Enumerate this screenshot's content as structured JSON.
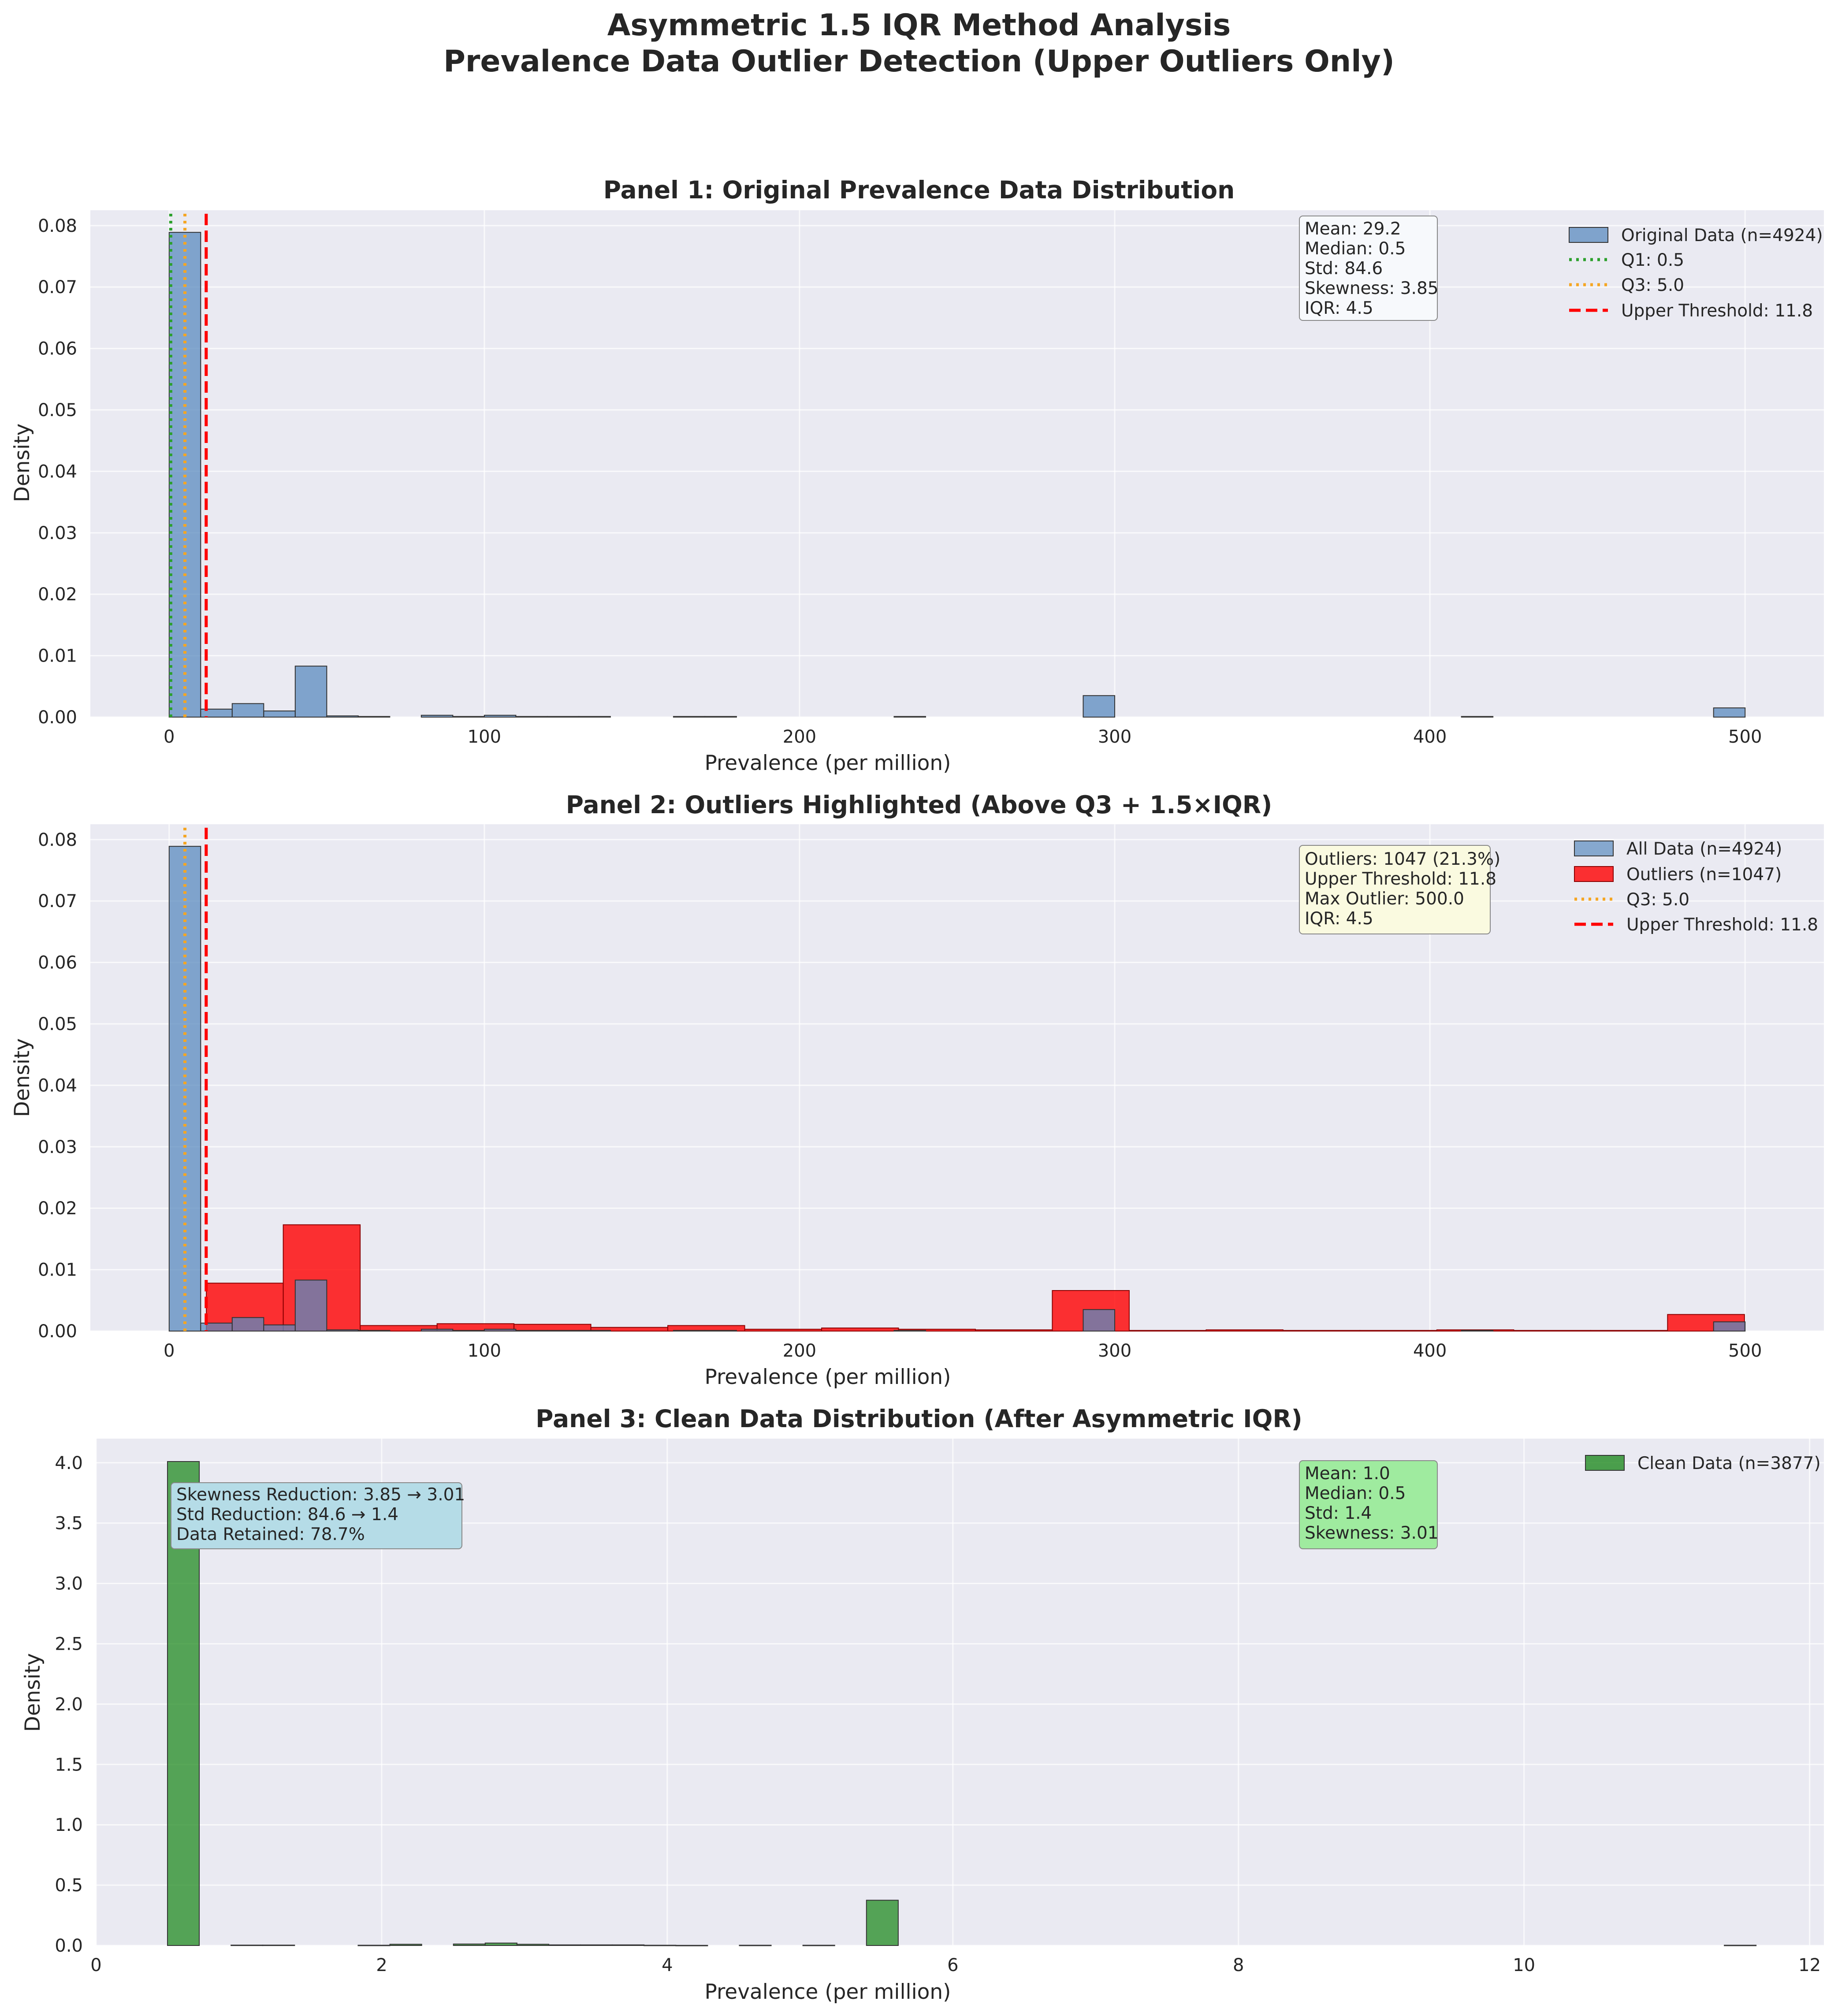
{
  "figure": {
    "title_line1": "Asymmetric 1.5 IQR Method Analysis",
    "title_line2": "Prevalence Data Outlier Detection (Upper Outliers Only)"
  },
  "colors": {
    "axes_bg": "#eaeaf2",
    "grid": "#ffffff",
    "original": "#5b8bbf",
    "outlier": "#ff0000",
    "clean": "#228b22",
    "q1": "#2ca02c",
    "q3": "#f5a623",
    "threshold": "#ff0000",
    "box_stats1": "#f7f9fc",
    "box_stats2": "#fafae0",
    "box_reduction": "#b5dce7",
    "box_clean": "#9feb9f"
  },
  "chart_data": [
    {
      "id": "panel1",
      "type": "bar",
      "title": "Panel 1: Original Prevalence Data Distribution",
      "xlabel": "Prevalence (per million)",
      "ylabel": "Density",
      "xlim": [
        -25,
        525
      ],
      "ylim": [
        0,
        0.0825
      ],
      "xticks": [
        0,
        100,
        200,
        300,
        400,
        500
      ],
      "xtick_labels": [
        "0",
        "100",
        "200",
        "300",
        "400",
        "500"
      ],
      "yticks": [
        0,
        0.01,
        0.02,
        0.03,
        0.04,
        0.05,
        0.06,
        0.07,
        0.08
      ],
      "ytick_labels": [
        "0.00",
        "0.01",
        "0.02",
        "0.03",
        "0.04",
        "0.05",
        "0.06",
        "0.07",
        "0.08"
      ],
      "grid": true,
      "legend_position": "upper right",
      "series": [
        {
          "name": "Original Data (n=4924)",
          "color": "#5b8bbf",
          "bin_width": 10,
          "bin_start": 0,
          "values": [
            0.0789,
            0.0013,
            0.0022,
            0.001,
            0.0083,
            0.0002,
            0.0001,
            0,
            0.0003,
            0.0001,
            0.0003,
            0.0001,
            0.0001,
            0.0001,
            0,
            0,
            0.0001,
            0.0001,
            0,
            0,
            0,
            0,
            0,
            0.0001,
            0,
            0,
            0,
            0,
            0,
            0.0035,
            0,
            0,
            0,
            0,
            0,
            0,
            0,
            0,
            0,
            0,
            0,
            0.0001,
            0,
            0,
            0,
            0,
            0,
            0,
            0,
            0.0015
          ]
        }
      ],
      "reference_lines": [
        {
          "name": "Q1: 0.5",
          "x": 0.5,
          "style": "dotted",
          "color": "#2ca02c"
        },
        {
          "name": "Q3: 5.0",
          "x": 5.0,
          "style": "dotted",
          "color": "#f5a623"
        },
        {
          "name": "Upper Threshold: 11.8",
          "x": 11.75,
          "style": "dashed",
          "color": "#ff0000"
        }
      ],
      "stats_box": [
        "Mean: 29.2",
        "Median: 0.5",
        "Std: 84.6",
        "Skewness: 3.85",
        "IQR: 4.5"
      ]
    },
    {
      "id": "panel2",
      "type": "bar",
      "title": "Panel 2: Outliers Highlighted (Above Q3 + 1.5×IQR)",
      "xlabel": "Prevalence (per million)",
      "ylabel": "Density",
      "xlim": [
        -25,
        525
      ],
      "ylim": [
        0,
        0.0825
      ],
      "xticks": [
        0,
        100,
        200,
        300,
        400,
        500
      ],
      "xtick_labels": [
        "0",
        "100",
        "200",
        "300",
        "400",
        "500"
      ],
      "yticks": [
        0,
        0.01,
        0.02,
        0.03,
        0.04,
        0.05,
        0.06,
        0.07,
        0.08
      ],
      "ytick_labels": [
        "0.00",
        "0.01",
        "0.02",
        "0.03",
        "0.04",
        "0.05",
        "0.06",
        "0.07",
        "0.08"
      ],
      "grid": true,
      "legend_position": "upper right",
      "series": [
        {
          "name": "All Data (n=4924)",
          "color": "#5b8bbf",
          "bin_width": 10,
          "bin_start": 0,
          "values": [
            0.0789,
            0.0013,
            0.0022,
            0.001,
            0.0083,
            0.0002,
            0.0001,
            0,
            0.0003,
            0.0001,
            0.0003,
            0.0001,
            0.0001,
            0.0001,
            0,
            0,
            0.0001,
            0.0001,
            0,
            0,
            0,
            0,
            0,
            0.0001,
            0,
            0,
            0,
            0,
            0,
            0.0035,
            0,
            0,
            0,
            0,
            0,
            0,
            0,
            0,
            0,
            0,
            0,
            0.0001,
            0,
            0,
            0,
            0,
            0,
            0,
            0,
            0.0015
          ]
        },
        {
          "name": "Outliers (n=1047)",
          "color": "#ff0000",
          "bin_width": 24.4,
          "bin_start": 11.8,
          "values": [
            0.0078,
            0.0173,
            0.0009,
            0.0012,
            0.0011,
            0.0006,
            0.0009,
            0.0003,
            0.0005,
            0.0003,
            0.0002,
            0.0066,
            0.0001,
            0.0002,
            0.0001,
            0.0001,
            0.0002,
            0.0001,
            0.0001,
            0.0027
          ]
        }
      ],
      "reference_lines": [
        {
          "name": "Q3: 5.0",
          "x": 5.0,
          "style": "dotted",
          "color": "#f5a623"
        },
        {
          "name": "Upper Threshold: 11.8",
          "x": 11.75,
          "style": "dashed",
          "color": "#ff0000"
        }
      ],
      "stats_box": [
        "Outliers: 1047 (21.3%)",
        "Upper Threshold: 11.8",
        "Max Outlier: 500.0",
        "IQR: 4.5"
      ]
    },
    {
      "id": "panel3",
      "type": "bar",
      "title": "Panel 3: Clean Data Distribution (After Asymmetric IQR)",
      "xlabel": "Prevalence (per million)",
      "ylabel": "Density",
      "xlim": [
        0,
        12.1
      ],
      "ylim": [
        0,
        4.2
      ],
      "xticks": [
        0,
        2,
        4,
        6,
        8,
        10,
        12
      ],
      "xtick_labels": [
        "0",
        "2",
        "4",
        "6",
        "8",
        "10",
        "12"
      ],
      "yticks": [
        0,
        0.5,
        1.0,
        1.5,
        2.0,
        2.5,
        3.0,
        3.5,
        4.0
      ],
      "ytick_labels": [
        "0.0",
        "0.5",
        "1.0",
        "1.5",
        "2.0",
        "2.5",
        "3.0",
        "3.5",
        "4.0"
      ],
      "grid": true,
      "legend_position": "upper right",
      "series": [
        {
          "name": "Clean Data (n=3877)",
          "color": "#228b22",
          "bin_width": 0.2225,
          "bin_start": 0.5,
          "values": [
            4.01,
            0,
            0.003,
            0.003,
            0,
            0,
            0.002,
            0.01,
            0,
            0.012,
            0.02,
            0.01,
            0.005,
            0.005,
            0.005,
            0.002,
            0.001,
            0,
            0.002,
            0,
            0.002,
            0,
            0.375,
            0,
            0,
            0,
            0,
            0,
            0,
            0,
            0,
            0,
            0,
            0,
            0,
            0,
            0,
            0,
            0,
            0,
            0,
            0,
            0,
            0,
            0,
            0,
            0,
            0,
            0,
            0.002
          ]
        }
      ],
      "reduction_box": [
        "Skewness Reduction: 3.85 → 3.01",
        "Std Reduction: 84.6 → 1.4",
        "Data Retained: 78.7%"
      ],
      "stats_box": [
        "Mean: 1.0",
        "Median: 0.5",
        "Std: 1.4",
        "Skewness: 3.01"
      ]
    }
  ]
}
